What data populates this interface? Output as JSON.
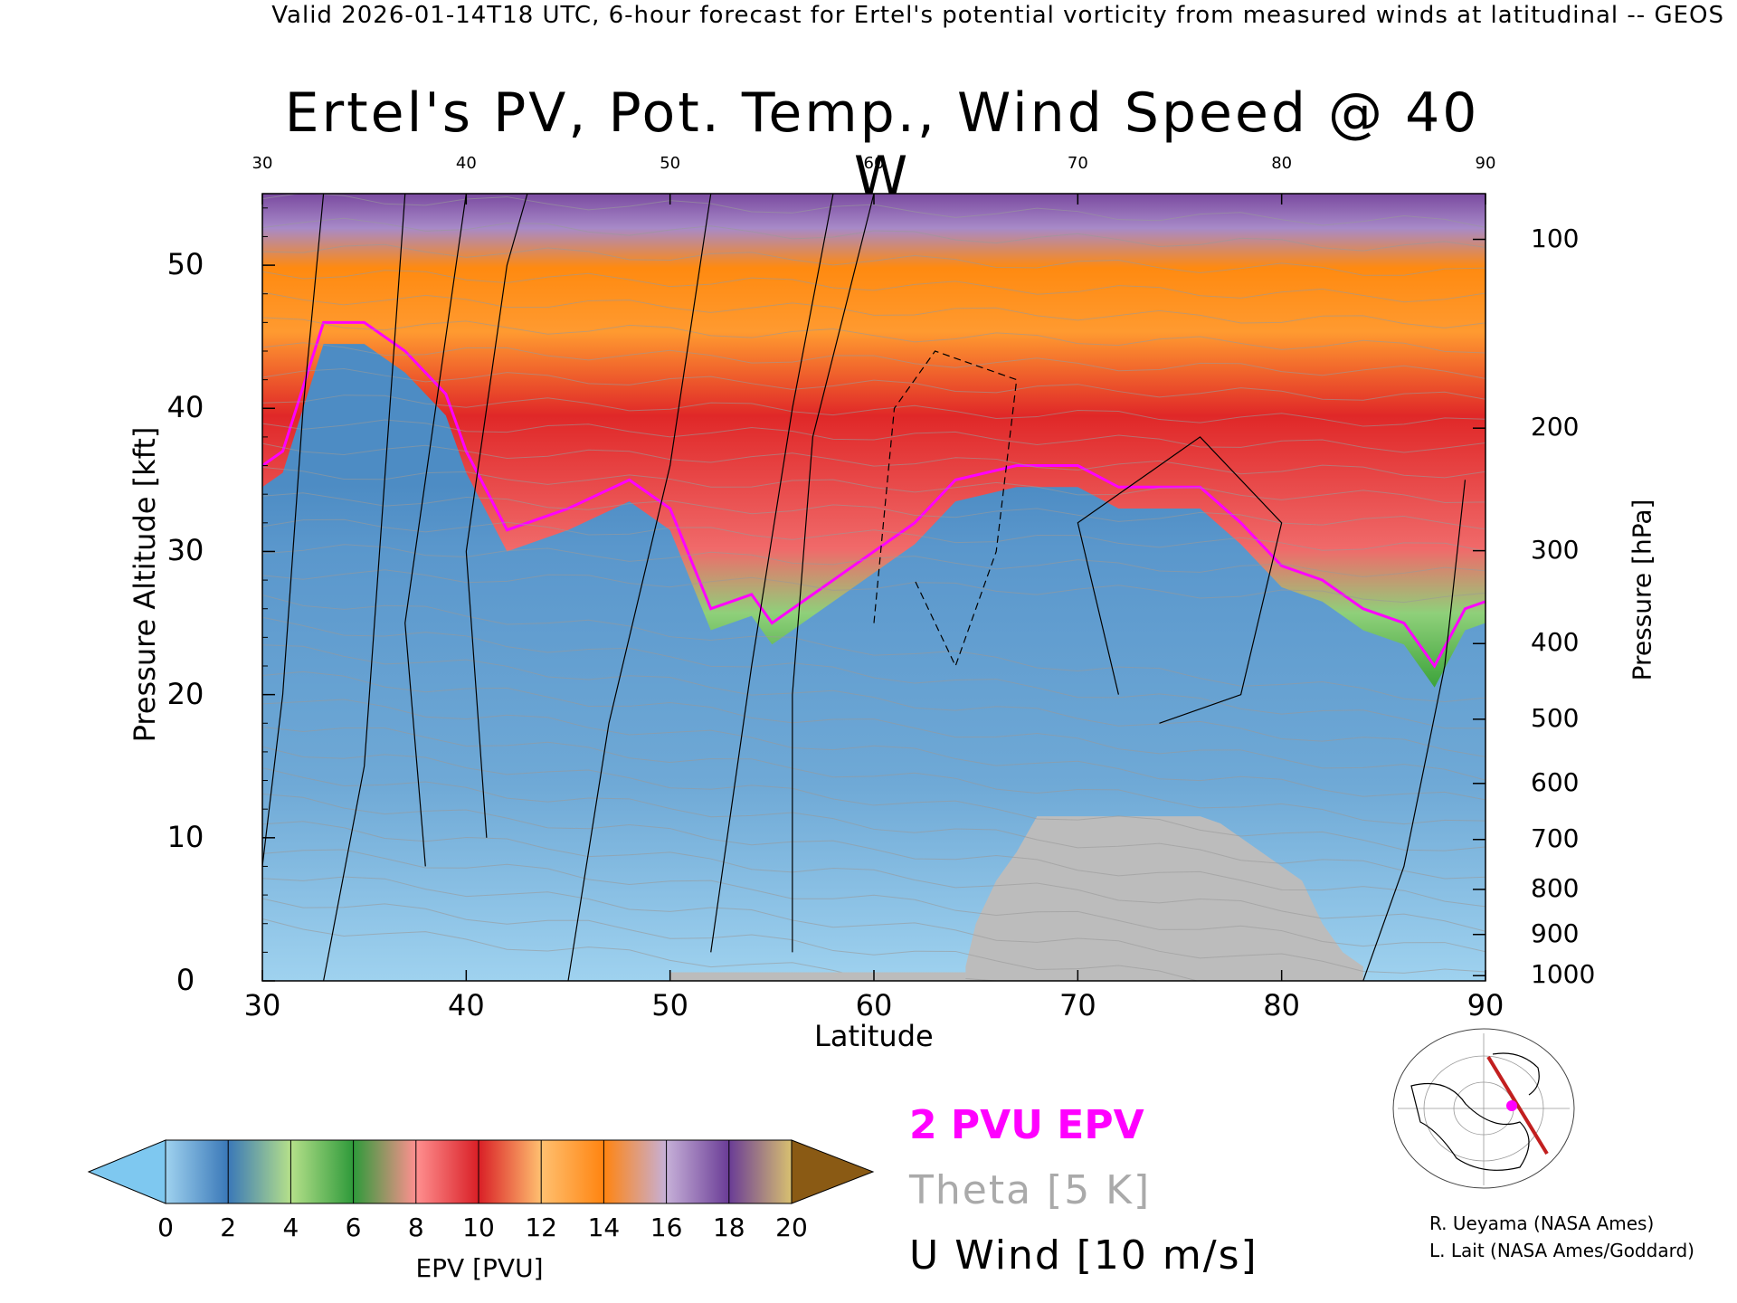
{
  "banner": "Valid 2026-01-14T18 UTC, 6-hour forecast for Ertel's potential vorticity from measured winds at latitudinal -- GEOS",
  "chart_data": {
    "type": "heatmap",
    "title": "Ertel's PV, Pot. Temp., Wind Speed @ 40 W",
    "xlabel": "Latitude",
    "ylabel": "Pressure Altitude [kft]",
    "y2label": "Pressure [hPa]",
    "xlim": [
      30,
      90
    ],
    "ylim": [
      0,
      55
    ],
    "x_ticks": [
      30,
      40,
      50,
      60,
      70,
      80,
      90
    ],
    "y_ticks": [
      0,
      10,
      20,
      30,
      40,
      50
    ],
    "pressure_ticks": [
      100,
      200,
      300,
      400,
      500,
      600,
      700,
      800,
      900,
      1000
    ],
    "tropopause_2pvu_kft": [
      [
        30,
        36
      ],
      [
        31,
        37
      ],
      [
        33,
        46
      ],
      [
        35,
        46
      ],
      [
        37,
        44
      ],
      [
        39,
        41
      ],
      [
        40,
        37
      ],
      [
        42,
        31.5
      ],
      [
        45,
        33
      ],
      [
        48,
        35
      ],
      [
        50,
        33
      ],
      [
        52,
        26
      ],
      [
        54,
        27
      ],
      [
        55,
        25
      ],
      [
        56,
        26
      ],
      [
        58,
        28
      ],
      [
        60,
        30
      ],
      [
        62,
        32
      ],
      [
        64,
        35
      ],
      [
        67,
        36
      ],
      [
        70,
        36
      ],
      [
        72,
        34.5
      ],
      [
        76,
        34.5
      ],
      [
        78,
        32
      ],
      [
        80,
        29
      ],
      [
        82,
        28
      ],
      [
        84,
        26
      ],
      [
        86,
        25
      ],
      [
        87.5,
        22
      ],
      [
        89,
        26
      ],
      [
        90,
        26.5
      ]
    ],
    "surface_mask_kft": [
      [
        64.5,
        1
      ],
      [
        65,
        4
      ],
      [
        66,
        7
      ],
      [
        67,
        9
      ],
      [
        68,
        11.5
      ],
      [
        76,
        11.5
      ],
      [
        77,
        11
      ],
      [
        79,
        9
      ],
      [
        81,
        7
      ],
      [
        82,
        4
      ],
      [
        83,
        2
      ],
      [
        84,
        1
      ]
    ],
    "colorbar": {
      "label": "EPV [PVU]",
      "ticks": [
        0,
        2,
        4,
        6,
        8,
        10,
        12,
        14,
        16,
        18,
        20
      ],
      "colors": [
        "#7ec8f0",
        "#5a9fd0",
        "#3a78b8",
        "#7dc66a",
        "#2e9a3a",
        "#ff8a8a",
        "#e83030",
        "#ffb060",
        "#ff8a10",
        "#b49ccc",
        "#7a4aa0",
        "#fff29a",
        "#8a5a14"
      ]
    },
    "legend": [
      "2 PVU EPV",
      "Theta [5 K]",
      "U Wind [10 m/s]"
    ]
  },
  "credits": {
    "line1": "R. Ueyama (NASA Ames)",
    "line2": "L. Lait (NASA Ames/Goddard)"
  }
}
